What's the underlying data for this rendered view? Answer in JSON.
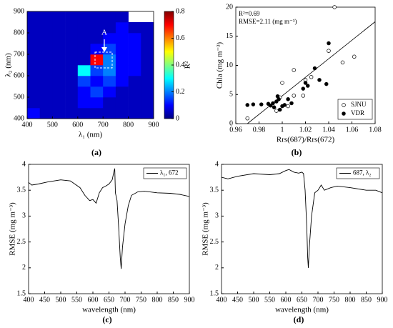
{
  "chart_data": [
    {
      "type": "heatmap",
      "caption": "(a)",
      "xlabel": "λ₁ (nm)",
      "ylabel": "λ₂ (nm)",
      "colorbar_label": "R²",
      "annotations": [
        "A"
      ],
      "xbins": [
        400,
        450,
        500,
        550,
        600,
        650,
        700,
        750,
        800,
        850,
        900
      ],
      "ybins": [
        400,
        450,
        500,
        550,
        600,
        650,
        700,
        750,
        800,
        850,
        900
      ],
      "z": [
        [
          0.1,
          0.05,
          0.05,
          0.05,
          0.05,
          0.05,
          0.05,
          0.05,
          0.05,
          0.05
        ],
        [
          0.05,
          0.05,
          0.05,
          0.05,
          0.1,
          0.1,
          0.05,
          0.05,
          0.05,
          0.05
        ],
        [
          0.05,
          0.05,
          0.05,
          0.05,
          0.1,
          0.15,
          0.1,
          0.05,
          0.05,
          0.05
        ],
        [
          0.05,
          0.05,
          0.05,
          0.05,
          0.15,
          0.1,
          0.15,
          0.1,
          0.05,
          0.05
        ],
        [
          0.05,
          0.05,
          0.05,
          0.05,
          0.3,
          0.15,
          0.2,
          0.1,
          0.1,
          0.05
        ],
        [
          0.05,
          0.05,
          0.05,
          0.05,
          0.05,
          0.7,
          0.2,
          0.1,
          0.1,
          0.05
        ],
        [
          0.05,
          0.05,
          0.05,
          0.05,
          0.05,
          0.1,
          0.15,
          0.1,
          0.1,
          0.05
        ],
        [
          0.05,
          0.05,
          0.05,
          0.05,
          0.05,
          0.05,
          0.1,
          0.1,
          0.1,
          0.05
        ],
        [
          0.05,
          0.05,
          0.05,
          0.05,
          0.05,
          0.05,
          0.05,
          0.1,
          0.05,
          0.05
        ],
        [
          0.05,
          0.05,
          0.05,
          0.05,
          0.05,
          0.05,
          0.05,
          0.05,
          null,
          null
        ]
      ],
      "xlim": [
        400,
        900
      ],
      "xticks": [
        400,
        500,
        600,
        700,
        800,
        900
      ],
      "ylim": [
        400,
        900
      ],
      "yticks": [
        400,
        500,
        600,
        700,
        800,
        900
      ],
      "clim": [
        0,
        0.8
      ],
      "cticks": [
        0,
        0.2,
        0.4,
        0.6,
        0.8
      ],
      "colormap": "jet"
    },
    {
      "type": "scatter",
      "caption": "(b)",
      "xlabel": "Rrs(687)/Rrs(672)",
      "ylabel": "Chla (mg m⁻³)",
      "annotations": [
        "R²=0.69",
        "RMSE=2.11 (mg m⁻³)"
      ],
      "xlim": [
        0.96,
        1.08
      ],
      "xticks": [
        0.96,
        0.98,
        1,
        1.02,
        1.04,
        1.06,
        1.08
      ],
      "ylim": [
        0,
        20
      ],
      "yticks": [
        0,
        5,
        10,
        15,
        20
      ],
      "legend": "lower right",
      "series": [
        {
          "name": "SJNU",
          "marker": "open",
          "color": "#000000",
          "x": [
            0.97,
            0.995,
            0.998,
            1.0,
            1.005,
            1.01,
            1.01,
            1.018,
            1.02,
            1.025,
            1.04,
            1.045,
            1.052,
            1.062
          ],
          "y": [
            0.9,
            2.2,
            4.5,
            7,
            3,
            4.8,
            9.2,
            4.8,
            7.5,
            8,
            12.5,
            20,
            10.5,
            11.5
          ]
        },
        {
          "name": "VDR",
          "marker": "filled",
          "color": "#000000",
          "x": [
            0.97,
            0.975,
            0.982,
            0.988,
            0.99,
            0.992,
            0.993,
            0.995,
            0.996,
            0.997,
            0.998,
            1.0,
            1.002,
            1.005,
            1.008,
            1.018,
            1.02,
            1.022,
            1.028,
            1.032,
            1.038,
            1.04
          ],
          "y": [
            3.2,
            3.3,
            3.3,
            3.4,
            3.1,
            3.5,
            2.8,
            3.8,
            4.7,
            4.2,
            2.4,
            3,
            3.2,
            4.2,
            3.5,
            6,
            7,
            6.5,
            9.5,
            7.5,
            6.8,
            13.8
          ]
        }
      ],
      "fit_line": {
        "x": [
          0.97,
          1.08
        ],
        "y": [
          0,
          17.5
        ]
      }
    },
    {
      "type": "line",
      "caption": "(c)",
      "xlabel": "wavelength (nm)",
      "ylabel": "RMSE (mg m⁻³)",
      "legend": "upper right",
      "xlim": [
        400,
        900
      ],
      "xticks": [
        400,
        450,
        500,
        550,
        600,
        650,
        700,
        750,
        800,
        850,
        900
      ],
      "ylim": [
        1.5,
        4
      ],
      "yticks": [
        1.5,
        2,
        2.5,
        3,
        3.5,
        4
      ],
      "series": [
        {
          "name": "λ₁, 672",
          "color": "#000000",
          "x": [
            400,
            410,
            430,
            460,
            500,
            530,
            560,
            575,
            590,
            600,
            610,
            620,
            630,
            640,
            650,
            660,
            665,
            668,
            670,
            675,
            680,
            685,
            688,
            692,
            700,
            710,
            720,
            740,
            760,
            800,
            840,
            870,
            900
          ],
          "values": [
            3.65,
            3.6,
            3.62,
            3.66,
            3.7,
            3.68,
            3.55,
            3.4,
            3.3,
            3.32,
            3.25,
            3.45,
            3.55,
            3.58,
            3.62,
            3.7,
            3.85,
            3.92,
            3.45,
            3.3,
            2.8,
            2.2,
            1.98,
            2.4,
            2.85,
            3.2,
            3.4,
            3.47,
            3.48,
            3.45,
            3.44,
            3.42,
            3.38
          ]
        }
      ]
    },
    {
      "type": "line",
      "caption": "(d)",
      "xlabel": "wavelength (nm)",
      "ylabel": "RMSE (mg m⁻³)",
      "legend": "upper right",
      "xlim": [
        400,
        900
      ],
      "xticks": [
        400,
        450,
        500,
        550,
        600,
        650,
        700,
        750,
        800,
        850,
        900
      ],
      "ylim": [
        1.5,
        4
      ],
      "yticks": [
        1.5,
        2,
        2.5,
        3,
        3.5,
        4
      ],
      "series": [
        {
          "name": "687, λ₂",
          "color": "#000000",
          "x": [
            400,
            420,
            450,
            500,
            550,
            580,
            600,
            610,
            625,
            640,
            650,
            655,
            660,
            665,
            668,
            670,
            673,
            680,
            690,
            700,
            705,
            710,
            720,
            740,
            760,
            800,
            850,
            880,
            900
          ],
          "values": [
            3.75,
            3.72,
            3.77,
            3.82,
            3.8,
            3.82,
            3.88,
            3.9,
            3.85,
            3.83,
            3.85,
            3.82,
            3.5,
            2.8,
            2.2,
            2.0,
            2.4,
            3.0,
            3.45,
            3.5,
            3.55,
            3.6,
            3.5,
            3.55,
            3.58,
            3.55,
            3.5,
            3.5,
            3.45
          ]
        }
      ]
    }
  ]
}
